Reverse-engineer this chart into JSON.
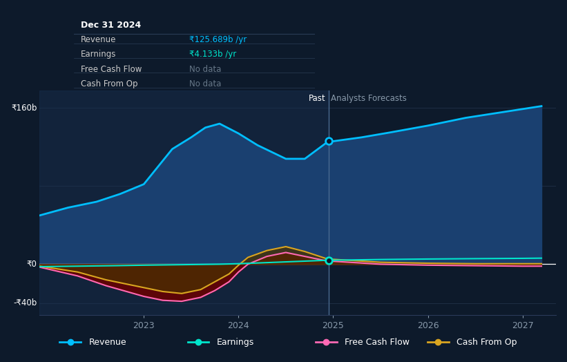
{
  "bg_color": "#0d1a2b",
  "plot_bg_color": "#0d1a2b",
  "tooltip_title": "Dec 31 2024",
  "tooltip_revenue_label": "Revenue",
  "tooltip_revenue_value": "₹125.689b /yr",
  "tooltip_earnings_label": "Earnings",
  "tooltip_earnings_value": "₹4.133b /yr",
  "tooltip_fcf_label": "Free Cash Flow",
  "tooltip_fcf_value": "No data",
  "tooltip_cfop_label": "Cash From Op",
  "tooltip_cfop_value": "No data",
  "ylabel_160": "₹160b",
  "ylabel_0": "₹0",
  "ylabel_neg40": "-₹40b",
  "past_label": "Past",
  "forecast_label": "Analysts Forecasts",
  "past_boundary": 2024.95,
  "revenue_x": [
    2021.9,
    2022.2,
    2022.5,
    2022.75,
    2023.0,
    2023.15,
    2023.3,
    2023.5,
    2023.65,
    2023.8,
    2024.0,
    2024.2,
    2024.5,
    2024.7,
    2024.95,
    2025.0,
    2025.3,
    2025.6,
    2026.0,
    2026.4,
    2026.8,
    2027.2
  ],
  "revenue_y": [
    50,
    58,
    64,
    72,
    82,
    100,
    118,
    130,
    140,
    144,
    134,
    122,
    108,
    108,
    126,
    126,
    130,
    135,
    142,
    150,
    156,
    162
  ],
  "earnings_x": [
    2021.9,
    2022.3,
    2022.7,
    2023.0,
    2023.4,
    2023.8,
    2024.0,
    2024.4,
    2024.95,
    2025.0,
    2025.5,
    2026.0,
    2026.5,
    2027.0,
    2027.2
  ],
  "earnings_y": [
    -2.5,
    -2.0,
    -1.5,
    -1.0,
    -0.5,
    0.0,
    0.5,
    2.0,
    4.1,
    4.1,
    4.8,
    5.3,
    5.7,
    6.0,
    6.2
  ],
  "fcf_x": [
    2021.9,
    2022.3,
    2022.6,
    2023.0,
    2023.2,
    2023.4,
    2023.6,
    2023.75,
    2023.9,
    2024.0,
    2024.1,
    2024.3,
    2024.5,
    2024.7,
    2024.95,
    2025.0,
    2025.5,
    2026.0,
    2026.5,
    2027.0,
    2027.2
  ],
  "fcf_y": [
    -3,
    -12,
    -22,
    -33,
    -37,
    -38,
    -34,
    -27,
    -18,
    -8,
    0,
    8,
    12,
    8,
    3,
    3,
    0,
    -1,
    -1.5,
    -2,
    -2
  ],
  "cfop_x": [
    2021.9,
    2022.3,
    2022.6,
    2023.0,
    2023.2,
    2023.4,
    2023.6,
    2023.75,
    2023.9,
    2024.0,
    2024.1,
    2024.3,
    2024.5,
    2024.7,
    2024.95,
    2025.0,
    2025.5,
    2026.0,
    2026.5,
    2027.0,
    2027.2
  ],
  "cfop_y": [
    -2,
    -8,
    -16,
    -24,
    -28,
    -30,
    -26,
    -18,
    -10,
    -1,
    7,
    14,
    18,
    13,
    5,
    5,
    2,
    1,
    0.5,
    0.5,
    0.5
  ],
  "revenue_color": "#00bfff",
  "earnings_color": "#00e5cc",
  "fcf_color": "#ff69b4",
  "cfop_color": "#daa520",
  "revenue_fill": "#1a4070",
  "fcf_fill": "#6b0000",
  "cfop_fill": "#4a3000",
  "past_shade": "#1a3050",
  "divider_color": "#4a6a90",
  "grid_color": "#1e2e44",
  "zero_line_color": "#ffffff",
  "ylim": [
    -52,
    178
  ],
  "xlim": [
    2021.9,
    2027.35
  ]
}
